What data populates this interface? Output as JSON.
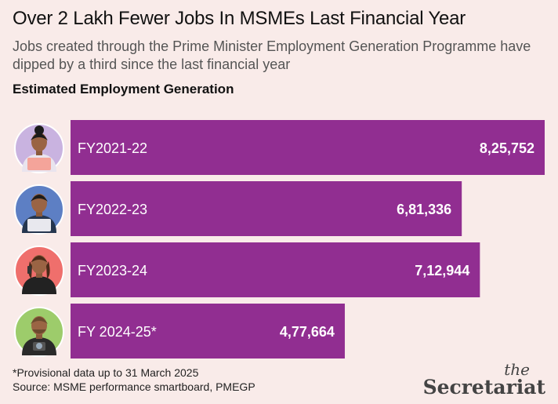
{
  "header": {
    "title": "Over 2 Lakh Fewer Jobs In MSMEs Last Financial Year",
    "subtitle": "Jobs created through the Prime Minister Employment Generation Programme have dipped by a third since the last financial year"
  },
  "chart_data": {
    "type": "bar",
    "orientation": "horizontal",
    "title": "Estimated Employment Generation",
    "categories": [
      "FY2021-22",
      "FY2022-23",
      "FY2023-24",
      "FY 2024-25*"
    ],
    "values": [
      825752,
      681336,
      712944,
      477664
    ],
    "value_labels": [
      "8,25,752",
      "6,81,336",
      "7,12,944",
      "4,77,664"
    ],
    "bar_color": "#912e91",
    "grid": false,
    "legend": "none"
  },
  "avatars": [
    {
      "icon": "woman-laptop-avatar-icon",
      "bg": "#c9b3e0"
    },
    {
      "icon": "man-laptop-avatar-icon",
      "bg": "#5d7fc4"
    },
    {
      "icon": "woman-phone-avatar-icon",
      "bg": "#ef6f6c"
    },
    {
      "icon": "man-camera-avatar-icon",
      "bg": "#9dcc6b"
    }
  ],
  "footer": {
    "footnote": "*Provisional data up to 31 March 2025",
    "source": "Source: MSME performance smartboard, PMEGP",
    "brand_the": "the",
    "brand_name": "Secretariat"
  }
}
